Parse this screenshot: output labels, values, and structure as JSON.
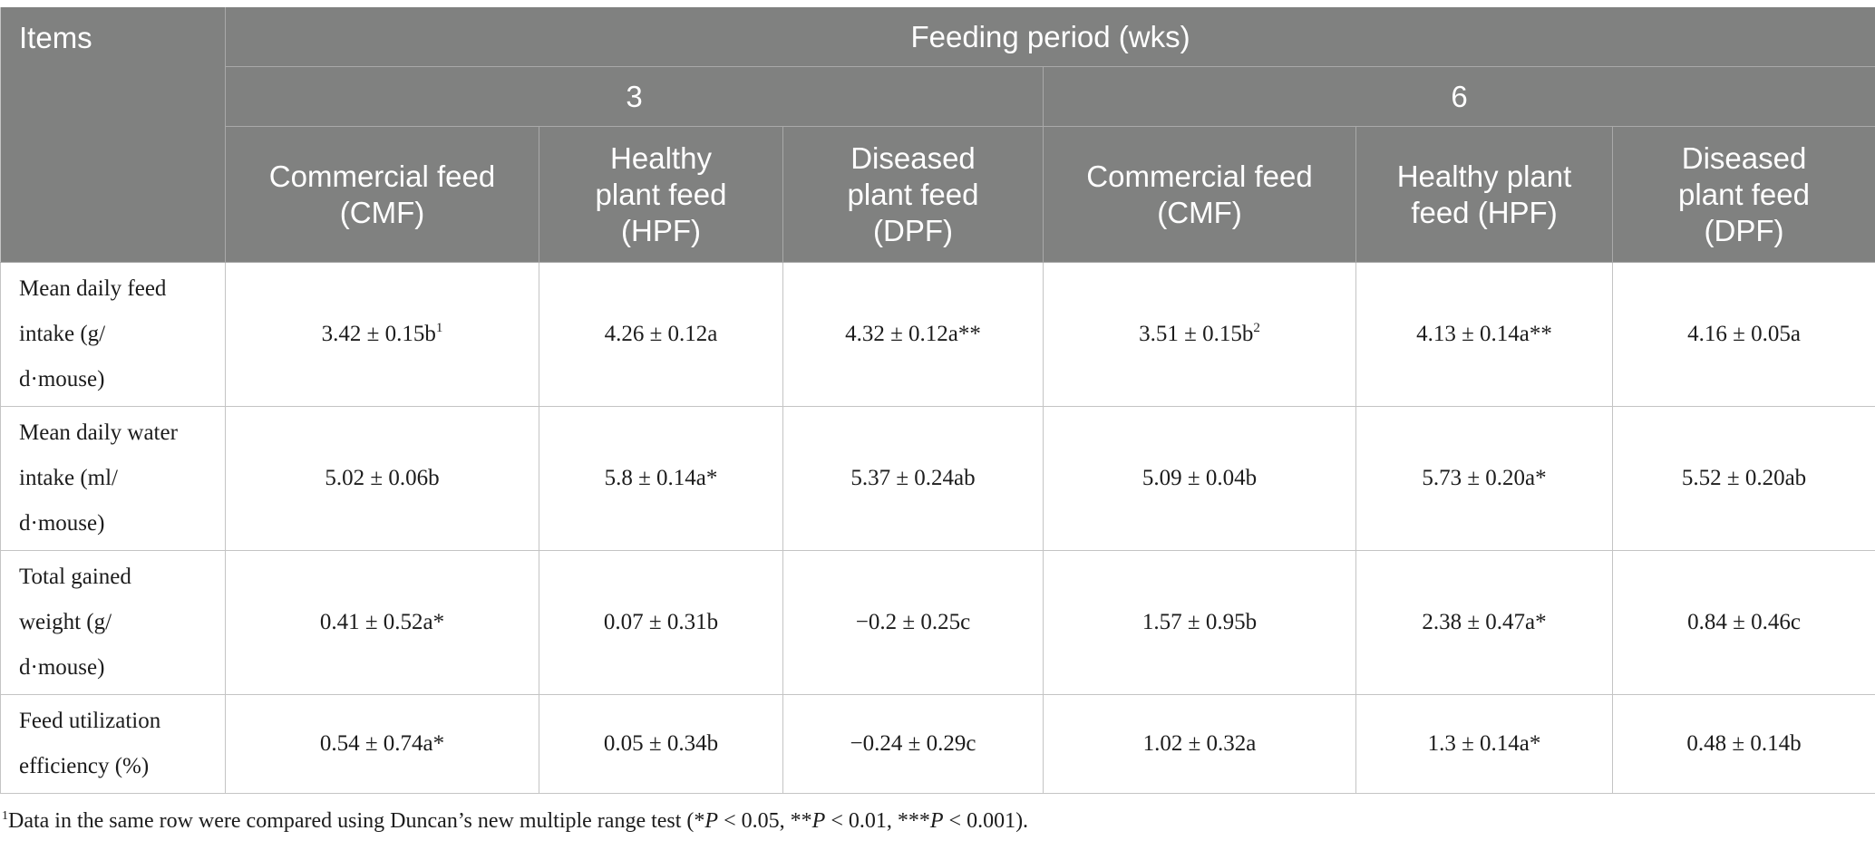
{
  "header": {
    "items": "Items",
    "feeding_period": "Feeding period (wks)",
    "periods": [
      "3",
      "6"
    ],
    "groups": [
      [
        "Commercial feed",
        "(CMF)"
      ],
      [
        "Healthy",
        "plant feed",
        "(HPF)"
      ],
      [
        "Diseased",
        "plant feed",
        "(DPF)"
      ],
      [
        "Commercial feed",
        "(CMF)"
      ],
      [
        "Healthy plant",
        "feed (HPF)"
      ],
      [
        "Diseased",
        "plant feed",
        "(DPF)"
      ]
    ]
  },
  "rows": [
    {
      "label": [
        "Mean daily feed",
        "intake (g/",
        "d·mouse)"
      ],
      "cells": [
        {
          "text": "3.42 ± 0.15b",
          "sup": "1"
        },
        {
          "text": "4.26 ± 0.12a"
        },
        {
          "text": "4.32 ± 0.12a**"
        },
        {
          "text": "3.51 ± 0.15b",
          "sup": "2"
        },
        {
          "text": "4.13 ± 0.14a**"
        },
        {
          "text": "4.16 ± 0.05a"
        }
      ]
    },
    {
      "label": [
        "Mean daily water",
        "intake (ml/",
        "d·mouse)"
      ],
      "cells": [
        {
          "text": "5.02 ± 0.06b"
        },
        {
          "text": "5.8 ± 0.14a*"
        },
        {
          "text": "5.37 ± 0.24ab"
        },
        {
          "text": "5.09 ± 0.04b"
        },
        {
          "text": "5.73 ± 0.20a*"
        },
        {
          "text": "5.52 ± 0.20ab"
        }
      ]
    },
    {
      "label": [
        "Total gained",
        "weight (g/",
        "d·mouse)"
      ],
      "cells": [
        {
          "text": "0.41 ± 0.52a*"
        },
        {
          "text": "0.07 ± 0.31b"
        },
        {
          "text": "−0.2 ± 0.25c"
        },
        {
          "text": "1.57 ± 0.95b"
        },
        {
          "text": "2.38 ± 0.47a*"
        },
        {
          "text": "0.84 ± 0.46c"
        }
      ]
    },
    {
      "label": [
        "Feed utilization",
        "efficiency (%)"
      ],
      "cells": [
        {
          "text": "0.54 ± 0.74a*"
        },
        {
          "text": "0.05 ± 0.34b"
        },
        {
          "text": "−0.24 ± 0.29c"
        },
        {
          "text": "1.02 ± 0.32a"
        },
        {
          "text": "1.3 ± 0.14a*"
        },
        {
          "text": "0.48 ± 0.14b"
        }
      ]
    }
  ],
  "footnote": {
    "sup": "1",
    "parts": [
      "Data in the same row were compared using Duncan’s new multiple range test (*",
      "P",
      " < 0.05, **",
      "P",
      " < 0.01, ***",
      "P",
      " < 0.001)."
    ]
  }
}
